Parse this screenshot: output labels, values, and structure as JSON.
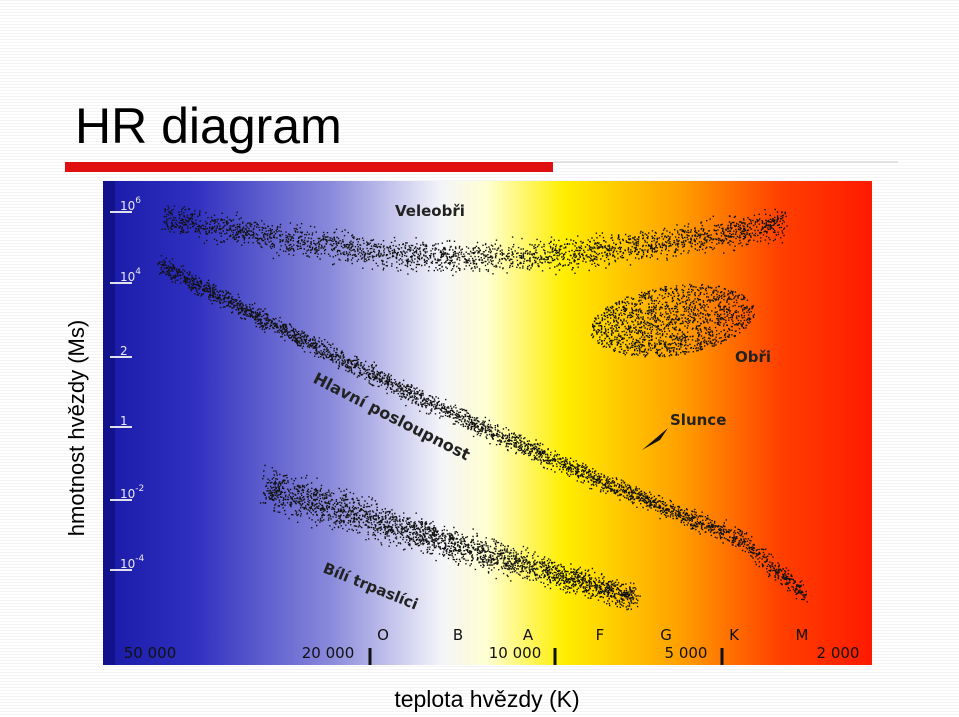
{
  "title": "HR diagram",
  "y_axis_label": "hmotnost hvězdy (Ms)",
  "x_axis_label": "teplota hvězdy (K)",
  "regions": [
    "Veleobři",
    "Obři",
    "Hlavní posloupnost",
    "Slunce",
    "Bílí trpaslíci"
  ],
  "y_ticks": [
    {
      "base": "10",
      "exp": "6"
    },
    {
      "base": "10",
      "exp": "4"
    },
    {
      "base": "2",
      "exp": ""
    },
    {
      "base": "1",
      "exp": ""
    },
    {
      "base": "10",
      "exp": "-2"
    },
    {
      "base": "10",
      "exp": "-4"
    }
  ],
  "spectral_classes": [
    "O",
    "B",
    "A",
    "F",
    "G",
    "K",
    "M"
  ],
  "temperatures": [
    "50 000",
    "20 000",
    "10 000",
    "5 000",
    "2 000"
  ]
}
